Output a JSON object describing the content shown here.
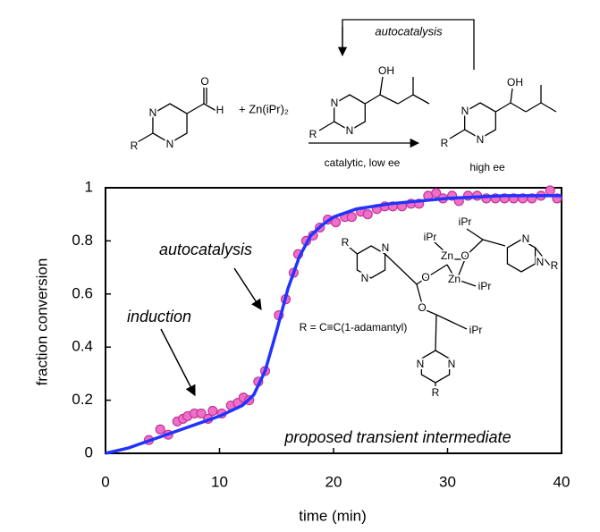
{
  "scheme": {
    "cycle_label": "autocatalysis",
    "reagent": "+ Zn(iPr)₂",
    "condition": "catalytic, low ee",
    "product_note": "high ee",
    "atoms": [
      "N",
      "N",
      "R",
      "O",
      "H",
      "OH",
      "N",
      "N",
      "R",
      "OH",
      "N",
      "N",
      "R",
      "R",
      "N",
      "N",
      "iPr",
      "iPr",
      "Zn",
      "O",
      "N",
      "N",
      "R",
      "O",
      "Zn",
      "iPr",
      "O",
      "iPr",
      "N",
      "N",
      "R"
    ]
  },
  "chart_data": {
    "type": "scatter",
    "x_label": "time (min)",
    "y_label": "fraction conversion",
    "annotations": [
      "autocatalysis",
      "induction",
      "R = C≡C(1-adamantyl)",
      "proposed transient intermediate"
    ],
    "xlim": [
      0,
      40
    ],
    "ylim": [
      0,
      1
    ],
    "xticks": [
      0,
      10,
      20,
      30,
      40
    ],
    "yticks": [
      0,
      0.2,
      0.4,
      0.6,
      0.8,
      1
    ],
    "series": [
      {
        "mode": "markers",
        "color": "#f06ec8",
        "x": [
          3.8,
          4.8,
          5.5,
          6.3,
          6.8,
          7.2,
          7.8,
          8.4,
          9.0,
          9.4,
          10.2,
          11.0,
          11.6,
          12.1,
          12.6,
          13.4,
          14.0,
          15.2,
          15.8,
          16.5,
          16.9,
          17.6,
          18.2,
          18.8,
          19.5,
          20.2,
          21.0,
          21.6,
          22.4,
          23.0,
          23.8,
          24.5,
          25.2,
          26.0,
          26.8,
          27.5,
          28.3,
          29.0,
          29.6,
          30.4,
          31.0,
          31.8,
          32.6,
          33.4,
          34.2,
          35.0,
          35.8,
          36.6,
          37.4,
          38.2,
          39.0,
          39.6
        ],
        "values": [
          0.05,
          0.09,
          0.07,
          0.12,
          0.13,
          0.14,
          0.15,
          0.15,
          0.13,
          0.16,
          0.15,
          0.18,
          0.19,
          0.21,
          0.2,
          0.27,
          0.31,
          0.52,
          0.58,
          0.68,
          0.75,
          0.8,
          0.82,
          0.85,
          0.88,
          0.87,
          0.89,
          0.89,
          0.91,
          0.9,
          0.92,
          0.93,
          0.93,
          0.93,
          0.94,
          0.94,
          0.97,
          0.98,
          0.96,
          0.97,
          0.95,
          0.97,
          0.97,
          0.96,
          0.96,
          0.96,
          0.96,
          0.96,
          0.96,
          0.97,
          0.99,
          0.96
        ]
      },
      {
        "mode": "line",
        "color": "#2233ff",
        "x": [
          0,
          2,
          4,
          6,
          8,
          10,
          12,
          13,
          14,
          15,
          16,
          17,
          18,
          19,
          20,
          22,
          25,
          30,
          35,
          40
        ],
        "values": [
          0,
          0.02,
          0.05,
          0.08,
          0.11,
          0.14,
          0.18,
          0.22,
          0.31,
          0.46,
          0.62,
          0.74,
          0.82,
          0.86,
          0.89,
          0.92,
          0.94,
          0.96,
          0.97,
          0.97
        ]
      }
    ]
  }
}
